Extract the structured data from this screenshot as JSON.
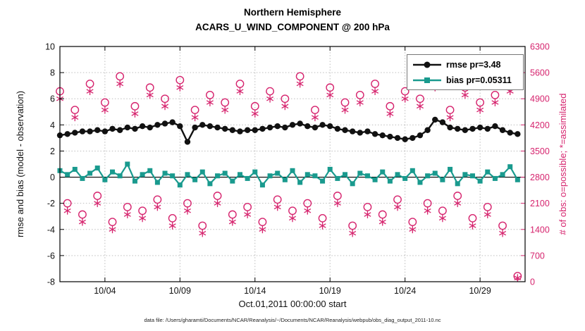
{
  "footer": "data file: /Users/gharamti/Documents/NCAR/Reanalysis/~/Documents/NCAR/Reanalysis/webpub/obs_diag_output_2011-10.nc",
  "colors": {
    "rmse": "#111111",
    "bias": "#199a8e",
    "obs": "#d6246e",
    "grid": "#b4b4b4",
    "axis": "#000000"
  },
  "chart_data": {
    "type": "line",
    "title": "Northern Hemisphere",
    "subtitle": "ACARS_U_WIND_COMPONENT @ 200 hPa",
    "xlabel": "Oct.01,2011 00:00:00 start",
    "ylabel_left": "rmse and bias (model - observation)",
    "ylabel_right": "# of obs: o=possible; *=assimilated",
    "ylim_left": [
      -8,
      10
    ],
    "ytick_step_left": 2,
    "ylim_right": [
      0,
      6300
    ],
    "ytick_step_right": 700,
    "xlim": [
      1,
      32
    ],
    "grid": "dotted",
    "zero_line": true,
    "legend": {
      "position": "top-right",
      "entries": [
        "rmse pr=3.48",
        "bias pr=0.05311"
      ]
    },
    "xticks": [
      {
        "day": 4,
        "label": "10/04"
      },
      {
        "day": 9,
        "label": "10/09"
      },
      {
        "day": 14,
        "label": "10/14"
      },
      {
        "day": 19,
        "label": "10/19"
      },
      {
        "day": 24,
        "label": "10/24"
      },
      {
        "day": 29,
        "label": "10/29"
      }
    ],
    "x_days": [
      1,
      1.5,
      2,
      2.5,
      3,
      3.5,
      4,
      4.5,
      5,
      5.5,
      6,
      6.5,
      7,
      7.5,
      8,
      8.5,
      9,
      9.5,
      10,
      10.5,
      11,
      11.5,
      12,
      12.5,
      13,
      13.5,
      14,
      14.5,
      15,
      15.5,
      16,
      16.5,
      17,
      17.5,
      18,
      18.5,
      19,
      19.5,
      20,
      20.5,
      21,
      21.5,
      22,
      22.5,
      23,
      23.5,
      24,
      24.5,
      25,
      25.5,
      26,
      26.5,
      27,
      27.5,
      28,
      28.5,
      29,
      29.5,
      30,
      30.5,
      31,
      31.5
    ],
    "series": [
      {
        "name": "rmse pr=3.48",
        "axis": "left",
        "marker": "circle-filled",
        "color_key": "rmse",
        "values": [
          3.2,
          3.3,
          3.4,
          3.5,
          3.5,
          3.6,
          3.5,
          3.7,
          3.6,
          3.8,
          3.7,
          3.9,
          3.8,
          4.0,
          4.1,
          4.2,
          3.9,
          2.7,
          3.8,
          4.0,
          3.9,
          3.8,
          3.7,
          3.6,
          3.5,
          3.6,
          3.6,
          3.7,
          3.8,
          3.9,
          3.8,
          4.0,
          4.1,
          3.9,
          3.8,
          4.0,
          3.9,
          3.7,
          3.6,
          3.5,
          3.4,
          3.5,
          3.3,
          3.2,
          3.1,
          3.0,
          2.9,
          3.0,
          3.2,
          3.6,
          4.4,
          4.2,
          3.8,
          3.7,
          3.6,
          3.7,
          3.8,
          3.7,
          3.9,
          3.6,
          3.4,
          3.3
        ]
      },
      {
        "name": "bias pr=0.05311",
        "axis": "left",
        "marker": "square-filled",
        "color_key": "bias",
        "values": [
          0.5,
          0.2,
          0.6,
          -0.1,
          0.3,
          0.7,
          -0.2,
          0.4,
          0.1,
          1.0,
          -0.3,
          0.2,
          0.5,
          -0.4,
          0.3,
          0.1,
          -0.6,
          0.2,
          -0.2,
          0.4,
          -0.5,
          0.1,
          0.3,
          -0.3,
          0.2,
          -0.1,
          0.4,
          -0.6,
          0.1,
          0.3,
          -0.2,
          0.5,
          -0.4,
          0.2,
          0.1,
          -0.3,
          0.6,
          -0.1,
          0.2,
          -0.5,
          0.3,
          0.1,
          -0.2,
          0.4,
          -0.3,
          0.2,
          -0.1,
          0.5,
          -0.4,
          0.1,
          0.3,
          -0.2,
          0.6,
          -0.5,
          0.2,
          0.1,
          -0.3,
          0.4,
          -0.1,
          0.2,
          0.8,
          -0.2
        ]
      },
      {
        "name": "obs possible",
        "axis": "right",
        "marker": "circle-open",
        "color_key": "obs",
        "values": [
          5100,
          2100,
          4600,
          1800,
          5300,
          2300,
          4800,
          1600,
          5500,
          2000,
          4700,
          1900,
          5200,
          2200,
          4900,
          1700,
          5400,
          2100,
          4600,
          1500,
          5000,
          2300,
          4800,
          1800,
          5300,
          2000,
          4700,
          1600,
          5100,
          2200,
          4900,
          1900,
          5500,
          2100,
          4600,
          1700,
          5200,
          2300,
          4800,
          1500,
          5000,
          2000,
          5300,
          1800,
          4700,
          2200,
          5100,
          1600,
          4900,
          2100,
          5400,
          1900,
          4600,
          2300,
          5200,
          1700,
          4800,
          2000,
          5000,
          1500,
          5300,
          150
        ]
      },
      {
        "name": "obs assimilated",
        "axis": "right",
        "marker": "asterisk",
        "color_key": "obs",
        "values": [
          4900,
          1900,
          4400,
          1600,
          5100,
          2100,
          4600,
          1400,
          5300,
          1800,
          4500,
          1700,
          5000,
          2000,
          4700,
          1500,
          5200,
          1900,
          4400,
          1300,
          4800,
          2100,
          4600,
          1600,
          5100,
          1800,
          4500,
          1400,
          4900,
          2000,
          4700,
          1700,
          5300,
          1900,
          4400,
          1500,
          5000,
          2100,
          4600,
          1300,
          4800,
          1800,
          5100,
          1600,
          4500,
          2000,
          4900,
          1400,
          4700,
          1900,
          5200,
          1700,
          4400,
          2100,
          5000,
          1500,
          4600,
          1800,
          4800,
          1300,
          5100,
          100
        ]
      }
    ]
  }
}
